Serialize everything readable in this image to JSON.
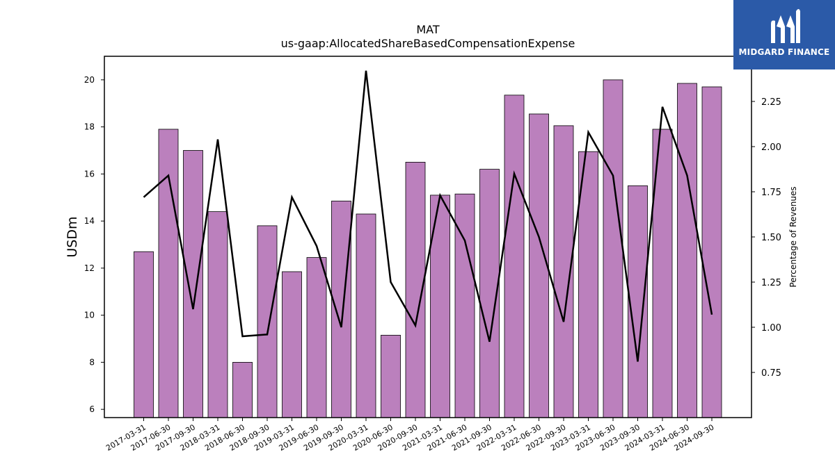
{
  "brand": {
    "name": "MIDGARD FINANCE",
    "color": "#2b5aa8"
  },
  "chart_data": {
    "type": "bar+line",
    "title": "MAT",
    "subtitle": "us-gaap:AllocatedShareBasedCompensationExpense",
    "ylabel_left": "USDm",
    "ylabel_right": "Percentage of Revenues",
    "ylim_left": [
      5.65,
      21.0
    ],
    "ylim_right": [
      0.5,
      2.5
    ],
    "yticks_left": [
      6,
      8,
      10,
      12,
      14,
      16,
      18,
      20
    ],
    "yticks_right": [
      0.75,
      1.0,
      1.25,
      1.5,
      1.75,
      2.0,
      2.25
    ],
    "bar_color": "#bb80bd",
    "line_color": "#000000",
    "grid": false,
    "categories": [
      "2017-03-31",
      "2017-06-30",
      "2017-09-30",
      "2018-03-31",
      "2018-06-30",
      "2018-09-30",
      "2019-03-31",
      "2019-06-30",
      "2019-09-30",
      "2020-03-31",
      "2020-06-30",
      "2020-09-30",
      "2021-03-31",
      "2021-06-30",
      "2021-09-30",
      "2022-03-31",
      "2022-06-30",
      "2022-09-30",
      "2023-03-31",
      "2023-06-30",
      "2023-09-30",
      "2024-03-31",
      "2024-06-30",
      "2024-09-30"
    ],
    "series": [
      {
        "type": "bar",
        "values": [
          12.7,
          17.9,
          17.0,
          14.4,
          8.0,
          13.8,
          11.85,
          12.45,
          14.85,
          14.3,
          9.15,
          16.5,
          15.1,
          15.15,
          16.2,
          19.35,
          18.55,
          18.05,
          16.95,
          20.0,
          15.5,
          17.9,
          19.85,
          19.7
        ]
      },
      {
        "type": "line",
        "axis": "right",
        "values": [
          1.72,
          1.84,
          1.1,
          2.04,
          0.95,
          0.96,
          1.72,
          1.45,
          1.0,
          2.42,
          1.25,
          1.01,
          1.73,
          1.48,
          0.92,
          1.85,
          1.5,
          1.03,
          2.08,
          1.84,
          0.81,
          2.22,
          1.84,
          1.07
        ]
      }
    ]
  }
}
